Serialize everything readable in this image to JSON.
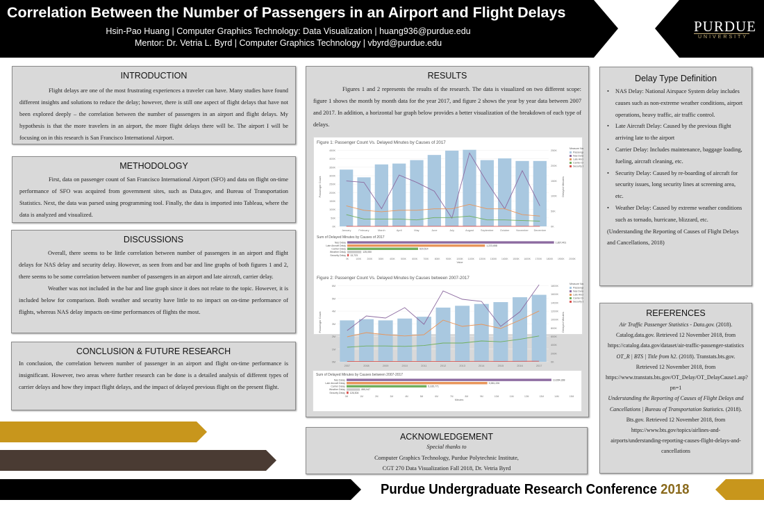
{
  "header": {
    "title": "Correlation Between the Number of Passengers in an Airport and Flight Delays",
    "author_line": "Hsin-Pao Huang | Computer Graphics Technology: Data Visualization | huang936@purdue.edu",
    "mentor_line": "Mentor: Dr. Vetria L. Byrd | Computer Graphics Technology | vbyrd@purdue.edu",
    "logo_text": "PURDUE",
    "logo_sub": "UNIVERSITY"
  },
  "intro": {
    "heading": "INTRODUCTION",
    "text": "Flight delays are one of the most frustrating experiences a traveler can have. Many studies have found different insights and solutions to reduce the delay; however, there is still one aspect of flight delays that have not been explored deeply – the correlation between the number of passengers in an airport and flight delays. My hypothesis is that the more travelers in an airport, the more flight delays there will be. The airport I will be focusing on in this research is San Francisco International Airport."
  },
  "method": {
    "heading": "METHODOLOGY",
    "text": "First, data on passenger count of San Francisco International Airport (SFO) and data on flight on-time performance of SFO was acquired from government sites, such as Data.gov, and Bureau of Transportation Statistics. Next, the data was parsed using programming tool. Finally, the data is imported into Tableau, where the data is analyzed and visualized."
  },
  "disc": {
    "heading": "DISCUSSIONS",
    "text1": "Overall, there seems to be little correlation between number of passengers in an airport and flight delays for NAS delay and security delay. However, as seen from and bar and line graphs of both figures 1 and 2, there seems to be some correlation between number of passengers in an airport and late aircraft, carrier delay.",
    "text2": "Weather was not included in the bar and line graph since it does not relate to the topic. However, it is included below for comparison. Both weather and security have little to no impact on on-time performance of flights, whereas NAS delay impacts on-time performances of flights the most."
  },
  "concl": {
    "heading": "CONCLUSION & FUTURE RESEARCH",
    "text": "In conclusion, the correlation between number of passenger in an airport and flight on-time performance is insignificant. However, two areas where further research can be done is a detailed analysis of different types of carrier delays and how they impact flight delays, and the impact of delayed previous flight on the present flight."
  },
  "results": {
    "heading": "RESULTS",
    "text": "Figures 1 and 2 represents the results of the research. The data is visualized on two different scope: figure 1 shows the month by month data for the year 2017, and figure 2 shows the year by year data between 2007 and 2017. In addition, a horizontal bar graph below provides a better visualization of the breakdown of each type of delays."
  },
  "ack": {
    "heading": "ACKNOWLEDGEMENT",
    "line1": "Special thanks to",
    "line2": "Computer Graphics Technology, Purdue Polytechnic Institute,",
    "line3": "CGT 270 Data Visualization Fall 2018, Dr. Vetria Byrd"
  },
  "defs": {
    "heading": "Delay Type Definition",
    "items": [
      "NAS Delay: National Airspace System delay includes causes such as non-extreme weather conditions, airport operations, heavy traffic, air traffic control.",
      "Late Aircraft Delay: Caused by the previous flight arriving late to the airport",
      "Carrier Delay: Includes maintenance, baggage loading, fueling, aircraft cleaning, etc.",
      "Security Delay: Caused by re-boarding of aircraft for security issues, long security lines at screening area, etc.",
      "Weather Delay: Caused by extreme weather conditions such as tornado, hurricane, blizzard, etc."
    ],
    "source": "(Understanding the Reporting of Causes of Flight Delays and Cancellations, 2018)"
  },
  "refs": {
    "heading": "REFERENCES",
    "r1_title": "Air Traffic Passenger Statistics - Data.gov.",
    "r1_rest": "(2018). Catalog.data.gov. Retrieved 12 November 2018, from https://catalog.data.gov/dataset/air-traffic-passenger-statistics",
    "r2_title": "OT_R | BTS | Title from h2.",
    "r2_rest": "(2018). Transtats.bts.gov. Retrieved 12 November 2018, from https://www.transtats.bts.gov/OT_Delay/OT_DelayCause1.asp?pn=1",
    "r3_title": "Understanding the Reporting of Causes of Flight Delays and Cancellations | Bureau of Transportation Statistics.",
    "r3_rest": "(2018). Bts.gov. Retrieved 12 November 2018, from https://www.bts.gov/topics/airlines-and-airports/understanding-reporting-causes-flight-delays-and-cancellations"
  },
  "footer": {
    "text": "Purdue Undergraduate Research Conference ",
    "year": "2018"
  },
  "colors": {
    "bar": "#a9c8e0",
    "nas": "#8c6aa0",
    "late": "#e8955a",
    "carrier": "#6fae5c",
    "security": "#d9534f",
    "weather": "#c7c7c7",
    "gold": "#c8961c",
    "brown": "#4a3b33"
  },
  "chart_data": [
    {
      "type": "bar",
      "title": "Figure 1: Passenger Count Vs. Delayed Minutes by Causes of 2017",
      "ylabel": "Passenger Count",
      "y2label": "Delayed Minutes",
      "categories": [
        "January",
        "February",
        "March",
        "April",
        "May",
        "June",
        "July",
        "August",
        "September",
        "October",
        "November",
        "December"
      ],
      "y_ticks": [
        "0K",
        "50K",
        "100K",
        "150K",
        "200K",
        "250K",
        "300K",
        "350K",
        "400K",
        "450K"
      ],
      "y2_ticks": [
        "0K",
        "50K",
        "100K",
        "150K",
        "200K",
        "250K"
      ],
      "ylim": [
        0,
        460000
      ],
      "y2lim": [
        0,
        270000
      ],
      "legend_title": "Measure Names",
      "legend": [
        "Passenger Count",
        "Nas Delay",
        "Late Aircraft Del..",
        "Carrier Delay",
        "Security Delay"
      ],
      "series": [
        {
          "name": "Passenger Count",
          "values": [
            330000,
            285000,
            360000,
            365000,
            385000,
            415000,
            440000,
            445000,
            385000,
            395000,
            380000,
            380000
          ]
        },
        {
          "name": "Nas Delay",
          "values": [
            155000,
            150000,
            60000,
            175000,
            150000,
            120000,
            28000,
            250000,
            150000,
            60000,
            190000,
            70000
          ]
        },
        {
          "name": "Late Aircraft Del..",
          "values": [
            70000,
            55000,
            50000,
            55000,
            55000,
            60000,
            60000,
            75000,
            60000,
            60000,
            40000,
            35000
          ]
        },
        {
          "name": "Carrier Delay",
          "values": [
            40000,
            25000,
            25000,
            25000,
            22000,
            30000,
            30000,
            35000,
            22000,
            22000,
            20000,
            18000
          ]
        },
        {
          "name": "Security Delay",
          "values": [
            300,
            200,
            200,
            300,
            200,
            200,
            300,
            300,
            200,
            200,
            200,
            200
          ]
        }
      ]
    },
    {
      "type": "bar",
      "title": "Sum of Delayed Minutes by Causes of 2017",
      "xlabel": "Value",
      "categories": [
        "Nas Delay",
        "Late Aircraft Delay",
        "Carrier Delay",
        "Weather Delay",
        "Security Delay"
      ],
      "values": [
        1837401,
        1223658,
        629514,
        125050,
        13723
      ],
      "labels": [
        "1,837,401",
        "1,223,658",
        "629,514",
        "125,050",
        "13,723"
      ],
      "x_ticks": [
        "0K",
        "100K",
        "200K",
        "300K",
        "400K",
        "500K",
        "600K",
        "700K",
        "800K",
        "900K",
        "1000K",
        "1100K",
        "1200K",
        "1300K",
        "1400K",
        "1500K",
        "1600K",
        "1700K",
        "1800K",
        "1900K",
        "2000K"
      ],
      "xlim": [
        0,
        2000000
      ]
    },
    {
      "type": "bar",
      "title": "Figure 2: Passenger Count Vs. Delayed Minutes by Causes between 2007-2017",
      "ylabel": "Passenger Count",
      "y2label": "Delayed Minutes",
      "categories": [
        "2007",
        "2008",
        "2009",
        "2010",
        "2011",
        "2012",
        "2013",
        "2014",
        "2015",
        "2016",
        "2017"
      ],
      "y_ticks": [
        "0M",
        "1M",
        "2M",
        "3M",
        "4M",
        "5M",
        "6M"
      ],
      "y2_ticks": [
        "0K",
        "200K",
        "400K",
        "600K",
        "800K",
        "1000K",
        "1200K",
        "1400K",
        "1600K",
        "1800K"
      ],
      "ylim": [
        0,
        6500000
      ],
      "y2lim": [
        0,
        1900000
      ],
      "legend_title": "Measure Names",
      "legend": [
        "Passenger Count",
        "Nas Delay",
        "Late Aircraft Del..",
        "Carrier Delay",
        "Security Delay"
      ],
      "series": [
        {
          "name": "Passenger Count",
          "values": [
            3400000,
            3500000,
            3400000,
            3550000,
            3700000,
            4450000,
            4600000,
            4750000,
            4900000,
            5300000,
            5500000
          ]
        },
        {
          "name": "Nas Delay",
          "values": [
            750000,
            1100000,
            1050000,
            1300000,
            900000,
            1700000,
            1500000,
            1450000,
            850000,
            1200000,
            1850000
          ]
        },
        {
          "name": "Late Aircraft Del..",
          "values": [
            600000,
            700000,
            650000,
            620000,
            650000,
            1000000,
            850000,
            900000,
            800000,
            1000000,
            1220000
          ]
        },
        {
          "name": "Carrier Delay",
          "values": [
            350000,
            380000,
            380000,
            370000,
            390000,
            450000,
            450000,
            500000,
            480000,
            540000,
            620000
          ]
        },
        {
          "name": "Security Delay",
          "values": [
            8000,
            8000,
            7000,
            7000,
            8000,
            10000,
            10000,
            11000,
            10000,
            12000,
            13000
          ]
        }
      ]
    },
    {
      "type": "bar",
      "title": "Sum of Delayed Minutes by Causes between 2007-2017",
      "xlabel": "Minutes",
      "categories": [
        "Nas Delay",
        "Late Aircraft Delay",
        "Carrier Delay",
        "Weather Delay",
        "Security Delay"
      ],
      "values": [
        13654338,
        9381226,
        5335771,
        895947,
        126304
      ],
      "labels": [
        "13,654,338",
        "9,381,226",
        "5,335,771",
        "895,947",
        "126,304"
      ],
      "x_ticks": [
        "0M",
        "1M",
        "2M",
        "3M",
        "4M",
        "5M",
        "6M",
        "7M",
        "8M",
        "9M",
        "10M",
        "11M",
        "12M",
        "13M",
        "14M",
        "15M"
      ],
      "xlim": [
        0,
        15000000
      ]
    }
  ]
}
